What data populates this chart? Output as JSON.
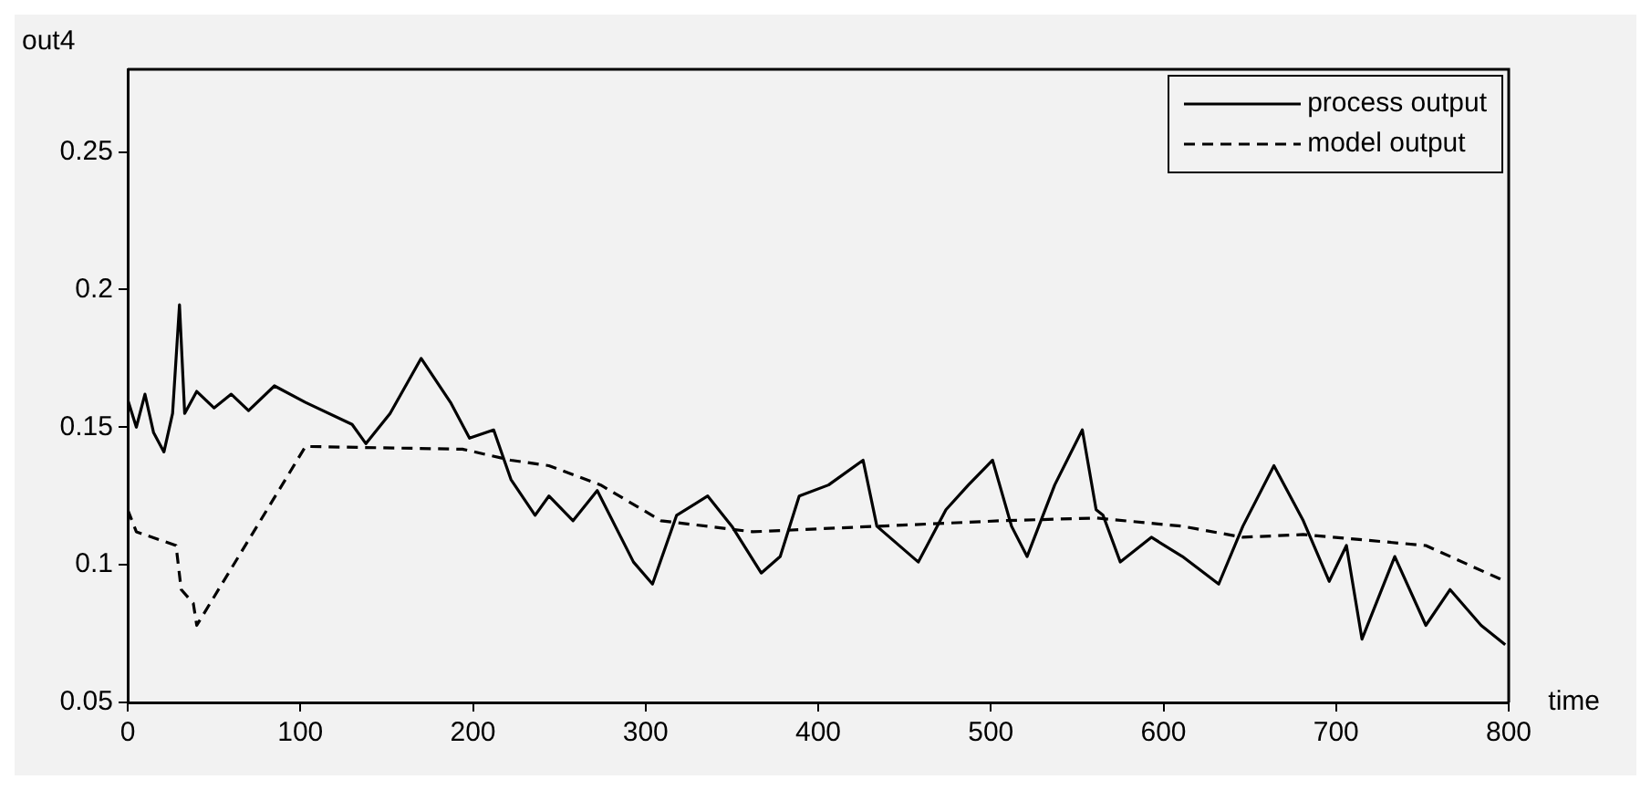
{
  "chart_data": {
    "type": "line",
    "xlabel": "time",
    "ylabel": "out4",
    "xlim": [
      0,
      800
    ],
    "xticks": [
      0,
      100,
      200,
      300,
      400,
      500,
      600,
      700,
      800
    ],
    "ylim": [
      0.05,
      0.28
    ],
    "yticks": [
      0.05,
      0.1,
      0.15,
      0.2,
      0.25
    ],
    "grid": false,
    "legend": "top right",
    "marker": "none",
    "series": [
      {
        "name": "process output",
        "color": "#000000",
        "line_style": "solid",
        "x": [
          0,
          5,
          10,
          15,
          21,
          26,
          30,
          33,
          40,
          50,
          60,
          70,
          85,
          103,
          130,
          138,
          152,
          170,
          187,
          198,
          212,
          222,
          236,
          244,
          258,
          272,
          293,
          304,
          318,
          336,
          350,
          367,
          378,
          389,
          406,
          426,
          434,
          458,
          474,
          487,
          501,
          512,
          521,
          537,
          553,
          561,
          565,
          575,
          593,
          611,
          632,
          646,
          664,
          681,
          696,
          706,
          715,
          734,
          752,
          766,
          784,
          798
        ],
        "values": [
          0.16,
          0.15,
          0.162,
          0.148,
          0.141,
          0.155,
          0.1945,
          0.155,
          0.163,
          0.157,
          0.162,
          0.156,
          0.165,
          0.159,
          0.151,
          0.144,
          0.155,
          0.175,
          0.159,
          0.146,
          0.149,
          0.131,
          0.118,
          0.125,
          0.116,
          0.127,
          0.101,
          0.093,
          0.118,
          0.125,
          0.114,
          0.097,
          0.103,
          0.125,
          0.129,
          0.138,
          0.114,
          0.101,
          0.12,
          0.129,
          0.138,
          0.114,
          0.103,
          0.129,
          0.149,
          0.12,
          0.118,
          0.101,
          0.11,
          0.103,
          0.093,
          0.114,
          0.136,
          0.116,
          0.094,
          0.107,
          0.073,
          0.103,
          0.078,
          0.091,
          0.078,
          0.071
        ]
      },
      {
        "name": "model output",
        "color": "#000000",
        "line_style": "dashed",
        "x": [
          0,
          5,
          28,
          31,
          38,
          40,
          103,
          194,
          222,
          244,
          274,
          309,
          362,
          434,
          506,
          561,
          611,
          646,
          681,
          752,
          798
        ],
        "values": [
          0.12,
          0.112,
          0.107,
          0.091,
          0.086,
          0.078,
          0.143,
          0.142,
          0.138,
          0.136,
          0.129,
          0.116,
          0.112,
          0.114,
          0.116,
          0.117,
          0.114,
          0.11,
          0.111,
          0.107,
          0.094
        ]
      }
    ]
  }
}
